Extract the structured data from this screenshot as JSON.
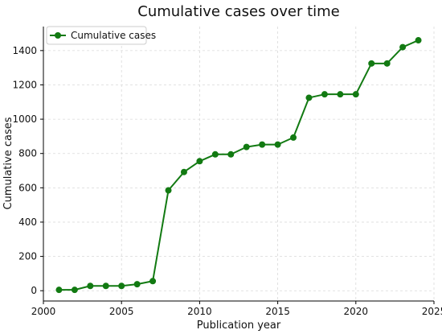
{
  "chart_data": {
    "type": "line",
    "title": "Cumulative cases over time",
    "xlabel": "Publication year",
    "ylabel": "Cumulative cases",
    "xlim": [
      2000,
      2025
    ],
    "ylim": [
      -60,
      1540
    ],
    "x_ticks": [
      2000,
      2005,
      2010,
      2015,
      2020,
      2025
    ],
    "y_ticks": [
      0,
      200,
      400,
      600,
      800,
      1000,
      1200,
      1400
    ],
    "grid": true,
    "legend_position": "top-left",
    "series": [
      {
        "name": "Cumulative cases",
        "color": "#127a12",
        "marker": "circle",
        "x": [
          2001,
          2002,
          2003,
          2004,
          2005,
          2006,
          2007,
          2008,
          2009,
          2010,
          2011,
          2012,
          2013,
          2014,
          2015,
          2016,
          2017,
          2018,
          2019,
          2020,
          2021,
          2022,
          2023,
          2024
        ],
        "y": [
          5,
          5,
          28,
          28,
          28,
          38,
          56,
          585,
          692,
          755,
          795,
          795,
          838,
          852,
          852,
          893,
          1125,
          1145,
          1145,
          1145,
          1325,
          1325,
          1420,
          1460
        ]
      }
    ]
  }
}
